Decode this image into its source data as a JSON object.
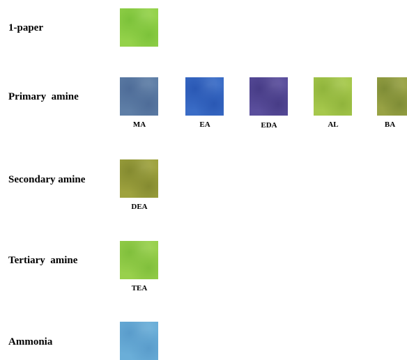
{
  "rows": [
    {
      "label": "1-paper",
      "swatches": [
        {
          "caption": "",
          "color": "#94d24a",
          "texture": "#7cc23a"
        }
      ]
    },
    {
      "label": "Primary  amine",
      "swatches": [
        {
          "caption": "MA",
          "color": "#5e7ea6",
          "texture": "#4e6c98"
        },
        {
          "caption": "EA",
          "color": "#3a6cc6",
          "texture": "#2a58b4"
        },
        {
          "caption": "EDA",
          "color": "#5a4e9c",
          "texture": "#473c86"
        },
        {
          "caption": "AL",
          "color": "#a6c84c",
          "texture": "#90b43c"
        },
        {
          "caption": "BA",
          "color": "#98a244",
          "texture": "#7e8c36"
        }
      ]
    },
    {
      "label": "Secondary amine",
      "swatches": [
        {
          "caption": "DEA",
          "color": "#9ea23e",
          "texture": "#848a30"
        }
      ]
    },
    {
      "label": "Tertiary  amine",
      "swatches": [
        {
          "caption": "TEA",
          "color": "#98d04c",
          "texture": "#80bf3c"
        }
      ]
    },
    {
      "label": "Ammonia",
      "swatches": [
        {
          "caption": "",
          "color": "#6aaed8",
          "texture": "#5a9ccb"
        }
      ]
    }
  ]
}
